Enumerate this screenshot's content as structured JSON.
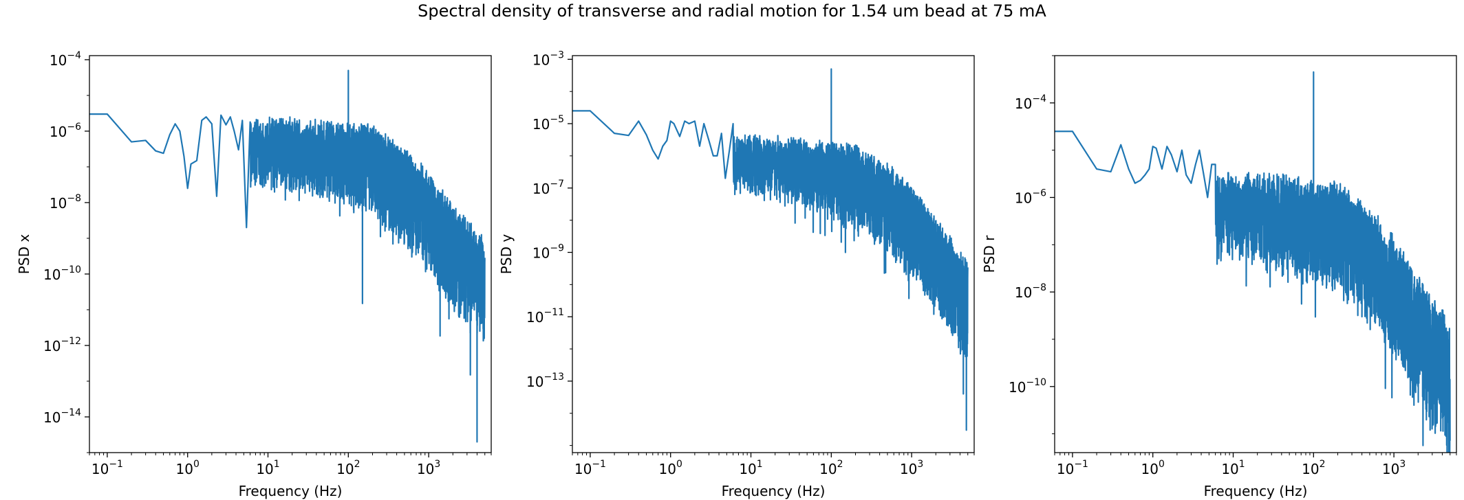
{
  "figure_title": "Spectral density of transverse and radial motion for 1.54 um bead at 75 mA",
  "colors": {
    "line": "#1f77b4",
    "axes": "#000000",
    "background": "#ffffff"
  },
  "chart_data": [
    {
      "type": "line",
      "xscale": "log",
      "yscale": "log",
      "xlabel": "Frequency (Hz)",
      "ylabel": "PSD x",
      "xlim": [
        0.06,
        6000
      ],
      "ylim": [
        1e-15,
        0.00013
      ],
      "xticks": [
        {
          "value": 0.1,
          "mantissa": "10",
          "exp": "−1"
        },
        {
          "value": 1,
          "mantissa": "10",
          "exp": "0"
        },
        {
          "value": 10,
          "mantissa": "10",
          "exp": "1"
        },
        {
          "value": 100,
          "mantissa": "10",
          "exp": "2"
        },
        {
          "value": 1000,
          "mantissa": "10",
          "exp": "3"
        }
      ],
      "yticks": [
        {
          "value": 0.0001,
          "mantissa": "10",
          "exp": "−4"
        },
        {
          "value": 1e-06,
          "mantissa": "10",
          "exp": "−6"
        },
        {
          "value": 1e-08,
          "mantissa": "10",
          "exp": "−8"
        },
        {
          "value": 1e-10,
          "mantissa": "10",
          "exp": "−10"
        },
        {
          "value": 1e-12,
          "mantissa": "10",
          "exp": "−12"
        },
        {
          "value": 1e-14,
          "mantissa": "10",
          "exp": "−14"
        }
      ],
      "low_freq": {
        "x": [
          0.05,
          0.1,
          0.2,
          0.3,
          0.4,
          0.5,
          0.6,
          0.7,
          0.8,
          0.9,
          1.0,
          1.1,
          1.3,
          1.5,
          1.7,
          2.0,
          2.3,
          2.6,
          3.0,
          3.4,
          3.8,
          4.3,
          4.8,
          5.4,
          6.0
        ],
        "y": [
          3e-06,
          3e-06,
          5e-07,
          5.5e-07,
          2.8e-07,
          2.4e-07,
          8e-07,
          1.6e-06,
          1e-06,
          2e-07,
          2.5e-08,
          1.2e-07,
          1.5e-07,
          2e-06,
          2.5e-06,
          1.6e-06,
          1.5e-08,
          2.8e-06,
          1.5e-06,
          2.5e-06,
          1e-06,
          3e-07,
          2e-06,
          2e-09,
          1.8e-06
        ]
      },
      "trend": [
        [
          6,
          1.5e-06
        ],
        [
          30,
          1.5e-06
        ],
        [
          200,
          1e-06
        ],
        [
          500,
          2.5e-07
        ],
        [
          1000,
          5e-08
        ],
        [
          2000,
          6e-09
        ],
        [
          5000,
          6e-10
        ]
      ],
      "spread": [
        [
          6,
          1.6
        ],
        [
          50,
          1.9
        ],
        [
          200,
          2.3
        ],
        [
          1000,
          2.6
        ],
        [
          5000,
          2.8
        ]
      ],
      "peaks": [
        {
          "x": 100,
          "y": 5e-05
        }
      ],
      "dips": [
        {
          "x": 150,
          "y": 1.5e-11
        },
        {
          "x": 4000,
          "y": 2e-15
        },
        {
          "x": 3300,
          "y": 1.5e-13
        }
      ],
      "series": [
        {
          "x_end": 5000
        }
      ]
    },
    {
      "type": "line",
      "xscale": "log",
      "yscale": "log",
      "xlabel": "Frequency (Hz)",
      "ylabel": "PSD y",
      "xlim": [
        0.06,
        6000
      ],
      "ylim": [
        6e-16,
        0.0013
      ],
      "xticks": [
        {
          "value": 0.1,
          "mantissa": "10",
          "exp": "−1"
        },
        {
          "value": 1,
          "mantissa": "10",
          "exp": "0"
        },
        {
          "value": 10,
          "mantissa": "10",
          "exp": "1"
        },
        {
          "value": 100,
          "mantissa": "10",
          "exp": "2"
        },
        {
          "value": 1000,
          "mantissa": "10",
          "exp": "3"
        }
      ],
      "yticks": [
        {
          "value": 0.001,
          "mantissa": "10",
          "exp": "−3"
        },
        {
          "value": 1e-05,
          "mantissa": "10",
          "exp": "−5"
        },
        {
          "value": 1e-07,
          "mantissa": "10",
          "exp": "−7"
        },
        {
          "value": 1e-09,
          "mantissa": "10",
          "exp": "−9"
        },
        {
          "value": 1e-11,
          "mantissa": "10",
          "exp": "−11"
        },
        {
          "value": 1e-13,
          "mantissa": "10",
          "exp": "−13"
        }
      ],
      "low_freq": {
        "x": [
          0.05,
          0.1,
          0.2,
          0.3,
          0.4,
          0.5,
          0.6,
          0.7,
          0.8,
          0.9,
          1.0,
          1.1,
          1.3,
          1.5,
          1.7,
          2.0,
          2.3,
          2.6,
          3.0,
          3.4,
          3.8,
          4.3,
          4.8,
          5.4,
          6.0
        ],
        "y": [
          2.5e-05,
          2.5e-05,
          5e-06,
          4.3e-06,
          1.2e-05,
          4.5e-06,
          1.5e-06,
          8e-07,
          2e-06,
          3e-06,
          1.2e-05,
          1e-05,
          4e-06,
          1.2e-05,
          1e-05,
          1.2e-05,
          2e-06,
          1e-05,
          3e-06,
          1e-06,
          1e-06,
          5e-06,
          2e-07,
          1.5e-06,
          1e-05
        ]
      },
      "trend": [
        [
          6,
          3e-06
        ],
        [
          30,
          2.5e-06
        ],
        [
          200,
          1.5e-06
        ],
        [
          500,
          4e-07
        ],
        [
          1000,
          8e-08
        ],
        [
          2000,
          8e-09
        ],
        [
          5000,
          4e-10
        ]
      ],
      "spread": [
        [
          6,
          1.6
        ],
        [
          50,
          1.9
        ],
        [
          200,
          2.4
        ],
        [
          1000,
          2.6
        ],
        [
          5000,
          2.9
        ]
      ],
      "peaks": [
        {
          "x": 100,
          "y": 0.0005
        }
      ],
      "dips": [
        {
          "x": 150,
          "y": 1e-09
        },
        {
          "x": 4800,
          "y": 3e-15
        },
        {
          "x": 4400,
          "y": 4e-14
        }
      ],
      "series": [
        {
          "x_end": 5000
        }
      ]
    },
    {
      "type": "line",
      "xscale": "log",
      "yscale": "log",
      "xlabel": "Frequency (Hz)",
      "ylabel": "PSD r",
      "xlim": [
        0.06,
        6000
      ],
      "ylim": [
        4e-12,
        0.001
      ],
      "xticks": [
        {
          "value": 0.1,
          "mantissa": "10",
          "exp": "−1"
        },
        {
          "value": 1,
          "mantissa": "10",
          "exp": "0"
        },
        {
          "value": 10,
          "mantissa": "10",
          "exp": "1"
        },
        {
          "value": 100,
          "mantissa": "10",
          "exp": "2"
        },
        {
          "value": 1000,
          "mantissa": "10",
          "exp": "3"
        }
      ],
      "yticks": [
        {
          "value": 0.0001,
          "mantissa": "10",
          "exp": "−4"
        },
        {
          "value": 1e-06,
          "mantissa": "10",
          "exp": "−6"
        },
        {
          "value": 1e-08,
          "mantissa": "10",
          "exp": "−8"
        },
        {
          "value": 1e-10,
          "mantissa": "10",
          "exp": "−10"
        }
      ],
      "low_freq": {
        "x": [
          0.05,
          0.1,
          0.2,
          0.3,
          0.4,
          0.5,
          0.6,
          0.7,
          0.8,
          0.9,
          1.0,
          1.1,
          1.3,
          1.5,
          1.7,
          2.0,
          2.3,
          2.6,
          3.0,
          3.4,
          3.8,
          4.3,
          4.8,
          5.4,
          6.0
        ],
        "y": [
          2.5e-05,
          2.5e-05,
          4e-06,
          3.5e-06,
          1.3e-05,
          4e-06,
          2e-06,
          2.3e-06,
          3e-06,
          4e-06,
          1.2e-05,
          1.1e-05,
          4e-06,
          1.2e-05,
          8e-06,
          3.5e-06,
          1e-05,
          3e-06,
          2e-06,
          5e-06,
          1e-05,
          3e-06,
          1e-06,
          5e-06,
          5e-06
        ]
      },
      "trend": [
        [
          6,
          2.5e-06
        ],
        [
          30,
          2e-06
        ],
        [
          200,
          1.4e-06
        ],
        [
          500,
          4e-07
        ],
        [
          1000,
          1e-07
        ],
        [
          2000,
          1.5e-08
        ],
        [
          5000,
          1.5e-09
        ]
      ],
      "spread": [
        [
          6,
          1.5
        ],
        [
          50,
          1.8
        ],
        [
          200,
          2.1
        ],
        [
          1000,
          2.3
        ],
        [
          5000,
          2.6
        ]
      ],
      "peaks": [
        {
          "x": 100,
          "y": 0.00045
        }
      ],
      "dips": [
        {
          "x": 400,
          "y": 3e-09
        },
        {
          "x": 2300,
          "y": 2e-11
        },
        {
          "x": 3000,
          "y": 2.5e-11
        }
      ],
      "series": [
        {
          "x_end": 5000
        }
      ]
    }
  ]
}
